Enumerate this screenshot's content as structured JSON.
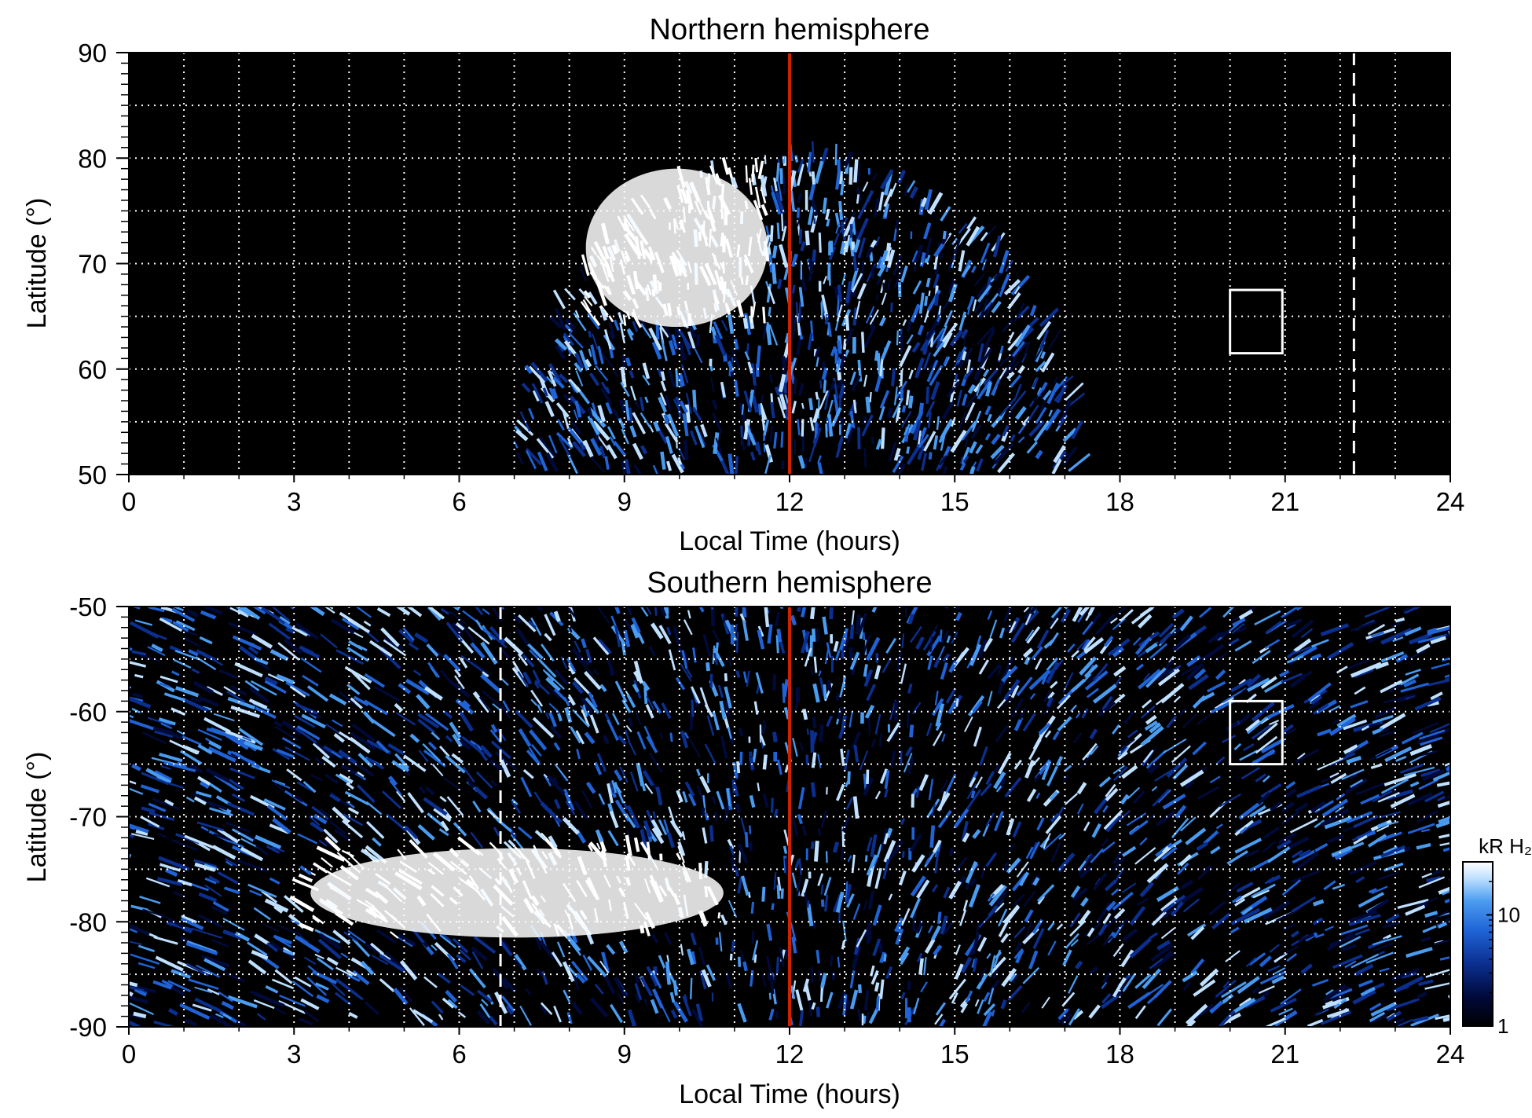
{
  "chart_data": [
    {
      "type": "heatmap",
      "title": "Northern hemisphere",
      "xlabel": "Local Time (hours)",
      "ylabel": "Latitude (°)",
      "xlim": [
        0,
        24
      ],
      "ylim": [
        50,
        90
      ],
      "xticks": [
        "0",
        "3",
        "6",
        "9",
        "12",
        "15",
        "18",
        "21",
        "24"
      ],
      "yticks": [
        "50",
        "60",
        "70",
        "80",
        "90"
      ],
      "grid": true,
      "background_color": "#000000",
      "grid_color": "#ffffff",
      "colormap": [
        "#000000",
        "#000a3a",
        "#0b2f8f",
        "#1f63d6",
        "#4a9cf0",
        "#bfe0ff",
        "#ffffff"
      ],
      "coverage": {
        "lt_start": 7.0,
        "lt_end": 17.2,
        "lat_min": 50,
        "lat_max": 80
      },
      "bright_region": {
        "lt_start": 8.3,
        "lt_end": 11.6,
        "lat_min": 64,
        "lat_max": 79
      },
      "annotations": {
        "noon_line_lt": 12,
        "noon_line_color": "#cc2200",
        "dashed_line_lt": 22.25,
        "box": {
          "lt_start": 20.0,
          "lt_end": 20.95,
          "lat_min": 61.5,
          "lat_max": 67.5
        }
      }
    },
    {
      "type": "heatmap",
      "title": "Southern hemisphere",
      "xlabel": "Local Time (hours)",
      "ylabel": "Latitude (°)",
      "xlim": [
        0,
        24
      ],
      "ylim": [
        -90,
        -50
      ],
      "xticks": [
        "0",
        "3",
        "6",
        "9",
        "12",
        "15",
        "18",
        "21",
        "24"
      ],
      "yticks": [
        "-90",
        "-80",
        "-70",
        "-60",
        "-50"
      ],
      "grid": true,
      "background_color": "#000000",
      "grid_color": "#ffffff",
      "colormap": [
        "#000000",
        "#000a3a",
        "#0b2f8f",
        "#1f63d6",
        "#4a9cf0",
        "#bfe0ff",
        "#ffffff"
      ],
      "coverage": {
        "lt_start": 0,
        "lt_end": 24,
        "lat_min": -90,
        "lat_max": -50
      },
      "bright_region": {
        "lt_start": 3.3,
        "lt_end": 10.8,
        "lat_min": -81.5,
        "lat_max": -73
      },
      "annotations": {
        "noon_line_lt": 12,
        "noon_line_color": "#cc2200",
        "dashed_line_lt": 6.75,
        "box": {
          "lt_start": 20.0,
          "lt_end": 20.95,
          "lat_min": -65,
          "lat_max": -59
        }
      }
    }
  ],
  "colorbar": {
    "label": "kR H₂",
    "scale": "log",
    "range": [
      1,
      30
    ],
    "tick_labels": [
      "1",
      "10"
    ],
    "tick_values": [
      1,
      10
    ]
  }
}
